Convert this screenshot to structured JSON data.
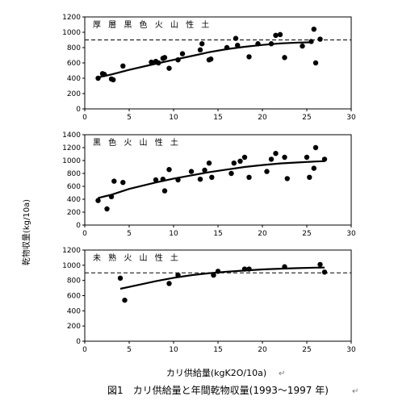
{
  "figure": {
    "ylabel": "乾物収量(kg/10a)",
    "xlabel": "カリ供給量(kgK2O/10a)",
    "caption": "図1　カリ供給量と年間乾物収量(1993～1997 年)",
    "return_mark": "↵"
  },
  "chart_data": [
    {
      "type": "scatter",
      "title": "厚 層 黒 色 火 山 性 土",
      "xlim": [
        0,
        30
      ],
      "ylim": [
        0,
        1200
      ],
      "xticks": [
        "0",
        "5",
        "10",
        "15",
        "20",
        "25",
        "30"
      ],
      "yticks": [
        "0",
        "200",
        "400",
        "600",
        "800",
        "1000",
        "1200"
      ],
      "reference_line": 900,
      "points": [
        [
          1.5,
          400
        ],
        [
          2,
          460
        ],
        [
          2.2,
          450
        ],
        [
          3,
          390
        ],
        [
          3.2,
          380
        ],
        [
          4.3,
          560
        ],
        [
          7.5,
          610
        ],
        [
          8,
          620
        ],
        [
          8.3,
          600
        ],
        [
          8.8,
          660
        ],
        [
          9,
          670
        ],
        [
          9.5,
          530
        ],
        [
          10.5,
          640
        ],
        [
          11,
          720
        ],
        [
          13,
          770
        ],
        [
          13.2,
          850
        ],
        [
          14,
          640
        ],
        [
          14.2,
          650
        ],
        [
          16,
          800
        ],
        [
          17,
          920
        ],
        [
          17.2,
          830
        ],
        [
          18.5,
          680
        ],
        [
          19.5,
          850
        ],
        [
          21,
          850
        ],
        [
          21.5,
          960
        ],
        [
          22,
          970
        ],
        [
          22.5,
          670
        ],
        [
          24.5,
          820
        ],
        [
          25.5,
          880
        ],
        [
          25.8,
          1040
        ],
        [
          26,
          600
        ],
        [
          26.5,
          910
        ]
      ],
      "fit_curve": [
        [
          1.5,
          410
        ],
        [
          3,
          450
        ],
        [
          5,
          510
        ],
        [
          8,
          590
        ],
        [
          10,
          640
        ],
        [
          12,
          690
        ],
        [
          14,
          740
        ],
        [
          16,
          780
        ],
        [
          18,
          810
        ],
        [
          20,
          835
        ],
        [
          22,
          855
        ],
        [
          24,
          865
        ],
        [
          25.5,
          870
        ]
      ]
    },
    {
      "type": "scatter",
      "title": "黒 色 火 山 性 土",
      "xlim": [
        0,
        30
      ],
      "ylim": [
        0,
        1400
      ],
      "xticks": [
        "0",
        "5",
        "10",
        "15",
        "20",
        "25",
        "30"
      ],
      "yticks": [
        "0",
        "200",
        "400",
        "600",
        "800",
        "1000",
        "1200",
        "1400"
      ],
      "points": [
        [
          1.5,
          380
        ],
        [
          2.5,
          250
        ],
        [
          3,
          440
        ],
        [
          3.3,
          680
        ],
        [
          4.3,
          660
        ],
        [
          8,
          700
        ],
        [
          8.8,
          710
        ],
        [
          9,
          530
        ],
        [
          9.5,
          860
        ],
        [
          10.5,
          700
        ],
        [
          12,
          830
        ],
        [
          13,
          710
        ],
        [
          13.5,
          850
        ],
        [
          14,
          960
        ],
        [
          14.3,
          740
        ],
        [
          16.5,
          800
        ],
        [
          16.8,
          960
        ],
        [
          17.5,
          990
        ],
        [
          18,
          1050
        ],
        [
          18.5,
          740
        ],
        [
          20.5,
          830
        ],
        [
          21,
          1020
        ],
        [
          21.5,
          1110
        ],
        [
          22.5,
          1050
        ],
        [
          22.8,
          720
        ],
        [
          25,
          1050
        ],
        [
          25.3,
          740
        ],
        [
          25.8,
          880
        ],
        [
          26,
          1200
        ],
        [
          27,
          1020
        ]
      ],
      "fit_curve": [
        [
          1.5,
          420
        ],
        [
          3,
          470
        ],
        [
          5,
          560
        ],
        [
          8,
          660
        ],
        [
          10,
          720
        ],
        [
          12,
          770
        ],
        [
          14,
          820
        ],
        [
          16,
          860
        ],
        [
          18,
          900
        ],
        [
          20,
          930
        ],
        [
          22,
          955
        ],
        [
          24,
          970
        ],
        [
          26,
          985
        ],
        [
          27,
          990
        ]
      ]
    },
    {
      "type": "scatter",
      "title": "未 熟 火 山 性 土",
      "xlim": [
        0,
        30
      ],
      "ylim": [
        0,
        1200
      ],
      "xticks": [
        "0",
        "5",
        "10",
        "15",
        "20",
        "25",
        "30"
      ],
      "yticks": [
        "0",
        "200",
        "400",
        "600",
        "800",
        "1000",
        "1200"
      ],
      "reference_line": 900,
      "points": [
        [
          4,
          830
        ],
        [
          4.5,
          540
        ],
        [
          9.5,
          760
        ],
        [
          10.5,
          870
        ],
        [
          14.5,
          870
        ],
        [
          15,
          920
        ],
        [
          18,
          950
        ],
        [
          18.5,
          950
        ],
        [
          22.5,
          980
        ],
        [
          26.5,
          1010
        ],
        [
          27,
          910
        ]
      ],
      "fit_curve": [
        [
          4,
          690
        ],
        [
          6,
          740
        ],
        [
          8,
          790
        ],
        [
          10,
          835
        ],
        [
          12,
          870
        ],
        [
          14,
          895
        ],
        [
          16,
          915
        ],
        [
          18,
          930
        ],
        [
          20,
          945
        ],
        [
          22,
          955
        ],
        [
          24,
          962
        ],
        [
          26,
          968
        ],
        [
          27,
          970
        ]
      ]
    }
  ]
}
